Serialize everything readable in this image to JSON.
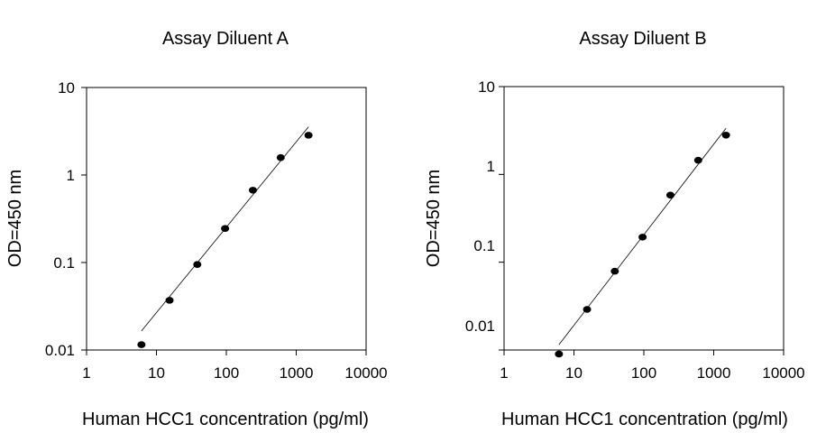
{
  "chart_data": [
    {
      "type": "scatter",
      "title": "Assay Diluent A",
      "xlabel": "Human HCC1 concentration (pg/ml)",
      "ylabel": "OD=450 nm",
      "x_scale": "log",
      "y_scale": "log",
      "xlim": [
        1,
        10000
      ],
      "ylim": [
        0.01,
        10
      ],
      "x_ticks": [
        "1",
        "10",
        "100",
        "1000",
        "10000"
      ],
      "y_ticks": [
        "0.01",
        "0.1",
        "1",
        "10"
      ],
      "grid": false,
      "series": [
        {
          "x": [
            6.1,
            15.4,
            38.4,
            96,
            240,
            600,
            1500
          ],
          "y": [
            0.0115,
            0.037,
            0.095,
            0.245,
            0.67,
            1.58,
            2.85
          ]
        }
      ],
      "fit_line": {
        "x": [
          6.1,
          1500
        ],
        "y": [
          0.0165,
          3.55
        ]
      }
    },
    {
      "type": "scatter",
      "title": "Assay Diluent B",
      "xlabel": "Human HCC1 concentration (pg/ml)",
      "ylabel": "OD=450 nm",
      "x_scale": "log",
      "y_scale": "log",
      "xlim": [
        1,
        10000
      ],
      "ylim": [
        0.01,
        10
      ],
      "x_ticks": [
        "1",
        "10",
        "100",
        "1000",
        "10000"
      ],
      "y_ticks": [
        "0.01",
        "0.1",
        "1",
        "10"
      ],
      "grid": false,
      "series": [
        {
          "x": [
            6.1,
            15.4,
            38.4,
            96,
            240,
            600,
            1500
          ],
          "y": [
            0.009,
            0.029,
            0.079,
            0.193,
            0.58,
            1.45,
            2.8
          ]
        }
      ],
      "fit_line": {
        "x": [
          6.1,
          1500
        ],
        "y": [
          0.0115,
          3.35
        ]
      }
    }
  ]
}
